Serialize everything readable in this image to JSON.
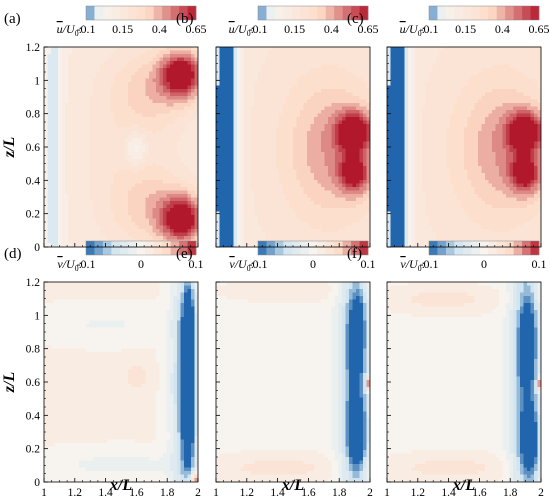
{
  "figure": {
    "xlabel": "x/L",
    "zlabel": "z/L",
    "top_colorbar": {
      "symbol": "u",
      "suffix": "/U",
      "sub": "0",
      "colon": ":",
      "ticks": [
        "-0.1",
        "0.15",
        "0.4",
        "0.65"
      ],
      "range": [
        -0.1,
        0.65
      ]
    },
    "bottom_colorbar": {
      "symbol": "v",
      "suffix": "/U",
      "sub": "0",
      "colon": ":",
      "ticks": [
        "-0.1",
        "0",
        "0.1"
      ],
      "range": [
        -0.1,
        0.1
      ]
    },
    "x_ticks": [
      "1",
      "1.2",
      "1.4",
      "1.6",
      "1.8",
      "2"
    ],
    "z_ticks": [
      "0",
      "0.2",
      "0.4",
      "0.6",
      "0.8",
      "1",
      "1.2"
    ]
  },
  "colors": {
    "neg_strong": "#2166ac",
    "neg_light": "#d1e5f0",
    "neutral": "#f7f4f0",
    "pos_light": "#fddbc7",
    "pos_strong": "#b2182b"
  },
  "chart_data": [
    {
      "panel": "(a)",
      "type": "heatmap",
      "variable": "u/U0",
      "xlim": [
        1,
        2
      ],
      "ylim": [
        0,
        1.2
      ],
      "background": 0.1,
      "features": [
        {
          "x": 1.9,
          "z": 1.04,
          "value": 0.65,
          "sx": 0.1,
          "sz": 0.1
        },
        {
          "x": 1.9,
          "z": 0.18,
          "value": 0.65,
          "sx": 0.1,
          "sz": 0.1
        },
        {
          "x": 1.72,
          "z": 0.95,
          "value": 0.3,
          "sx": 0.2,
          "sz": 0.18
        },
        {
          "x": 1.72,
          "z": 0.25,
          "value": 0.3,
          "sx": 0.2,
          "sz": 0.18
        },
        {
          "x": 1.5,
          "z": 0.6,
          "value": 0.2,
          "sx": 0.25,
          "sz": 0.45
        },
        {
          "x": 1.6,
          "z": 0.6,
          "value": -0.1,
          "sx": 0.05,
          "sz": 0.07
        },
        {
          "x": 1.06,
          "z": 0.6,
          "value": -0.08,
          "sx": 0.04,
          "sz": 0.8
        }
      ]
    },
    {
      "panel": "(b)",
      "type": "heatmap",
      "variable": "u/U0",
      "xlim": [
        1,
        2
      ],
      "ylim": [
        0,
        1.2
      ],
      "background": 0.15,
      "features": [
        {
          "x": 1.9,
          "z": 0.7,
          "value": 0.65,
          "sx": 0.08,
          "sz": 0.08
        },
        {
          "x": 1.9,
          "z": 0.45,
          "value": 0.55,
          "sx": 0.07,
          "sz": 0.08
        },
        {
          "x": 1.78,
          "z": 0.6,
          "value": 0.4,
          "sx": 0.22,
          "sz": 0.3
        },
        {
          "x": 1.55,
          "z": 0.6,
          "value": 0.2,
          "sx": 0.3,
          "sz": 0.6
        },
        {
          "x": 1.04,
          "z": 0.6,
          "value": -0.1,
          "sx": 0.05,
          "sz": 0.8
        },
        {
          "x": 1.1,
          "z": 0.6,
          "value": -0.05,
          "sx": 0.05,
          "sz": 0.8
        }
      ]
    },
    {
      "panel": "(c)",
      "type": "heatmap",
      "variable": "u/U0",
      "xlim": [
        1,
        2
      ],
      "ylim": [
        0,
        1.2
      ],
      "background": 0.15,
      "features": [
        {
          "x": 1.9,
          "z": 0.7,
          "value": 0.65,
          "sx": 0.08,
          "sz": 0.08
        },
        {
          "x": 1.9,
          "z": 0.45,
          "value": 0.55,
          "sx": 0.07,
          "sz": 0.08
        },
        {
          "x": 1.78,
          "z": 0.6,
          "value": 0.4,
          "sx": 0.22,
          "sz": 0.3
        },
        {
          "x": 1.55,
          "z": 0.6,
          "value": 0.2,
          "sx": 0.3,
          "sz": 0.6
        },
        {
          "x": 1.04,
          "z": 0.6,
          "value": -0.1,
          "sx": 0.05,
          "sz": 0.8
        },
        {
          "x": 1.1,
          "z": 0.6,
          "value": -0.05,
          "sx": 0.05,
          "sz": 0.8
        }
      ]
    },
    {
      "panel": "(d)",
      "type": "heatmap",
      "variable": "v/U0",
      "xlim": [
        1,
        2
      ],
      "ylim": [
        0,
        1.2
      ],
      "background": 0.01,
      "features": [
        {
          "x": 1.94,
          "z": 0.9,
          "value": -0.12,
          "sx": 0.03,
          "sz": 0.22
        },
        {
          "x": 1.94,
          "z": 0.4,
          "value": -0.12,
          "sx": 0.03,
          "sz": 0.22
        },
        {
          "x": 1.9,
          "z": 0.6,
          "value": -0.06,
          "sx": 0.06,
          "sz": 0.55
        },
        {
          "x": 1.6,
          "z": 0.64,
          "value": 0.04,
          "sx": 0.05,
          "sz": 0.05
        },
        {
          "x": 1.4,
          "z": 0.95,
          "value": -0.01,
          "sx": 0.3,
          "sz": 0.07
        },
        {
          "x": 1.5,
          "z": 0.12,
          "value": -0.015,
          "sx": 0.35,
          "sz": 0.06
        },
        {
          "x": 1.98,
          "z": 0.03,
          "value": 0.1,
          "sx": 0.02,
          "sz": 0.03
        }
      ]
    },
    {
      "panel": "(e)",
      "type": "heatmap",
      "variable": "v/U0",
      "xlim": [
        1,
        2
      ],
      "ylim": [
        0,
        1.2
      ],
      "background": 0.0,
      "features": [
        {
          "x": 1.92,
          "z": 0.3,
          "value": -0.12,
          "sx": 0.04,
          "sz": 0.15
        },
        {
          "x": 1.92,
          "z": 0.9,
          "value": -0.1,
          "sx": 0.04,
          "sz": 0.2
        },
        {
          "x": 1.88,
          "z": 0.6,
          "value": -0.07,
          "sx": 0.07,
          "sz": 0.6
        },
        {
          "x": 1.4,
          "z": 0.1,
          "value": 0.03,
          "sx": 0.35,
          "sz": 0.06
        },
        {
          "x": 1.45,
          "z": 1.15,
          "value": 0.02,
          "sx": 0.35,
          "sz": 0.05
        },
        {
          "x": 1.5,
          "z": 0.6,
          "value": 0.008,
          "sx": 0.3,
          "sz": 0.3
        },
        {
          "x": 1.99,
          "z": 0.6,
          "value": 0.1,
          "sx": 0.01,
          "sz": 0.03
        }
      ]
    },
    {
      "panel": "(f)",
      "type": "heatmap",
      "variable": "v/U0",
      "xlim": [
        1,
        2
      ],
      "ylim": [
        0,
        1.2
      ],
      "background": 0.0,
      "features": [
        {
          "x": 1.93,
          "z": 0.25,
          "value": -0.12,
          "sx": 0.04,
          "sz": 0.15
        },
        {
          "x": 1.92,
          "z": 0.85,
          "value": -0.1,
          "sx": 0.04,
          "sz": 0.2
        },
        {
          "x": 1.88,
          "z": 0.6,
          "value": -0.07,
          "sx": 0.07,
          "sz": 0.6
        },
        {
          "x": 1.4,
          "z": 0.1,
          "value": 0.03,
          "sx": 0.35,
          "sz": 0.06
        },
        {
          "x": 1.35,
          "z": 1.1,
          "value": 0.03,
          "sx": 0.3,
          "sz": 0.06
        },
        {
          "x": 1.5,
          "z": 0.6,
          "value": 0.008,
          "sx": 0.3,
          "sz": 0.3
        },
        {
          "x": 1.99,
          "z": 0.6,
          "value": 0.1,
          "sx": 0.01,
          "sz": 0.03
        }
      ]
    }
  ]
}
